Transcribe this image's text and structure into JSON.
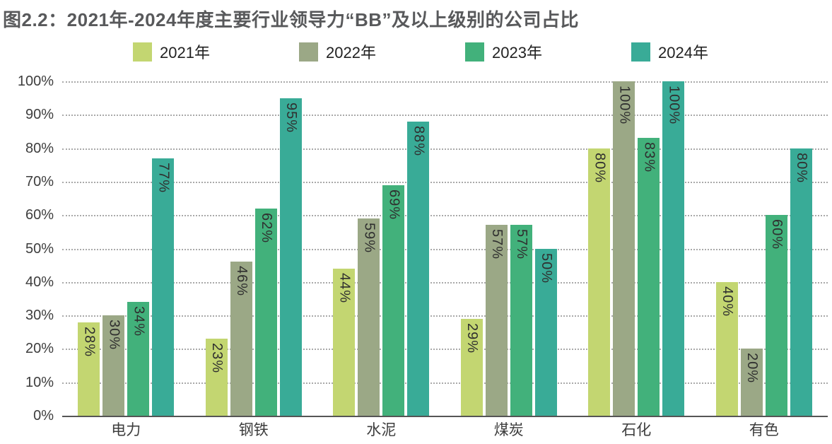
{
  "title": "图2.2：2021年-2024年度主要行业领导力“BB”及以上级别的公司占比",
  "chart_data": {
    "type": "bar",
    "title": "图2.2：2021年-2024年度主要行业领导力“BB”及以上级别的公司占比",
    "categories": [
      "电力",
      "钢铁",
      "水泥",
      "煤炭",
      "石化",
      "有色"
    ],
    "series": [
      {
        "name": "2021年",
        "color": "#c3d671",
        "values": [
          28,
          23,
          44,
          29,
          80,
          40
        ]
      },
      {
        "name": "2022年",
        "color": "#9ba886",
        "values": [
          30,
          46,
          59,
          57,
          100,
          20
        ]
      },
      {
        "name": "2023年",
        "color": "#42b17b",
        "values": [
          34,
          62,
          69,
          57,
          83,
          60
        ]
      },
      {
        "name": "2024年",
        "color": "#39ab97",
        "values": [
          77,
          95,
          88,
          50,
          100,
          80
        ]
      }
    ],
    "xlabel": "",
    "ylabel": "",
    "ylim": [
      0,
      100
    ],
    "yticks": [
      "100%",
      "90%",
      "80%",
      "70%",
      "60%",
      "50%",
      "40%",
      "30%",
      "20%",
      "10%",
      "0%"
    ],
    "value_label_suffix": "%",
    "grid": "horizontal-dotted",
    "legend_position": "top",
    "bar_label_rotation": "vertical"
  }
}
